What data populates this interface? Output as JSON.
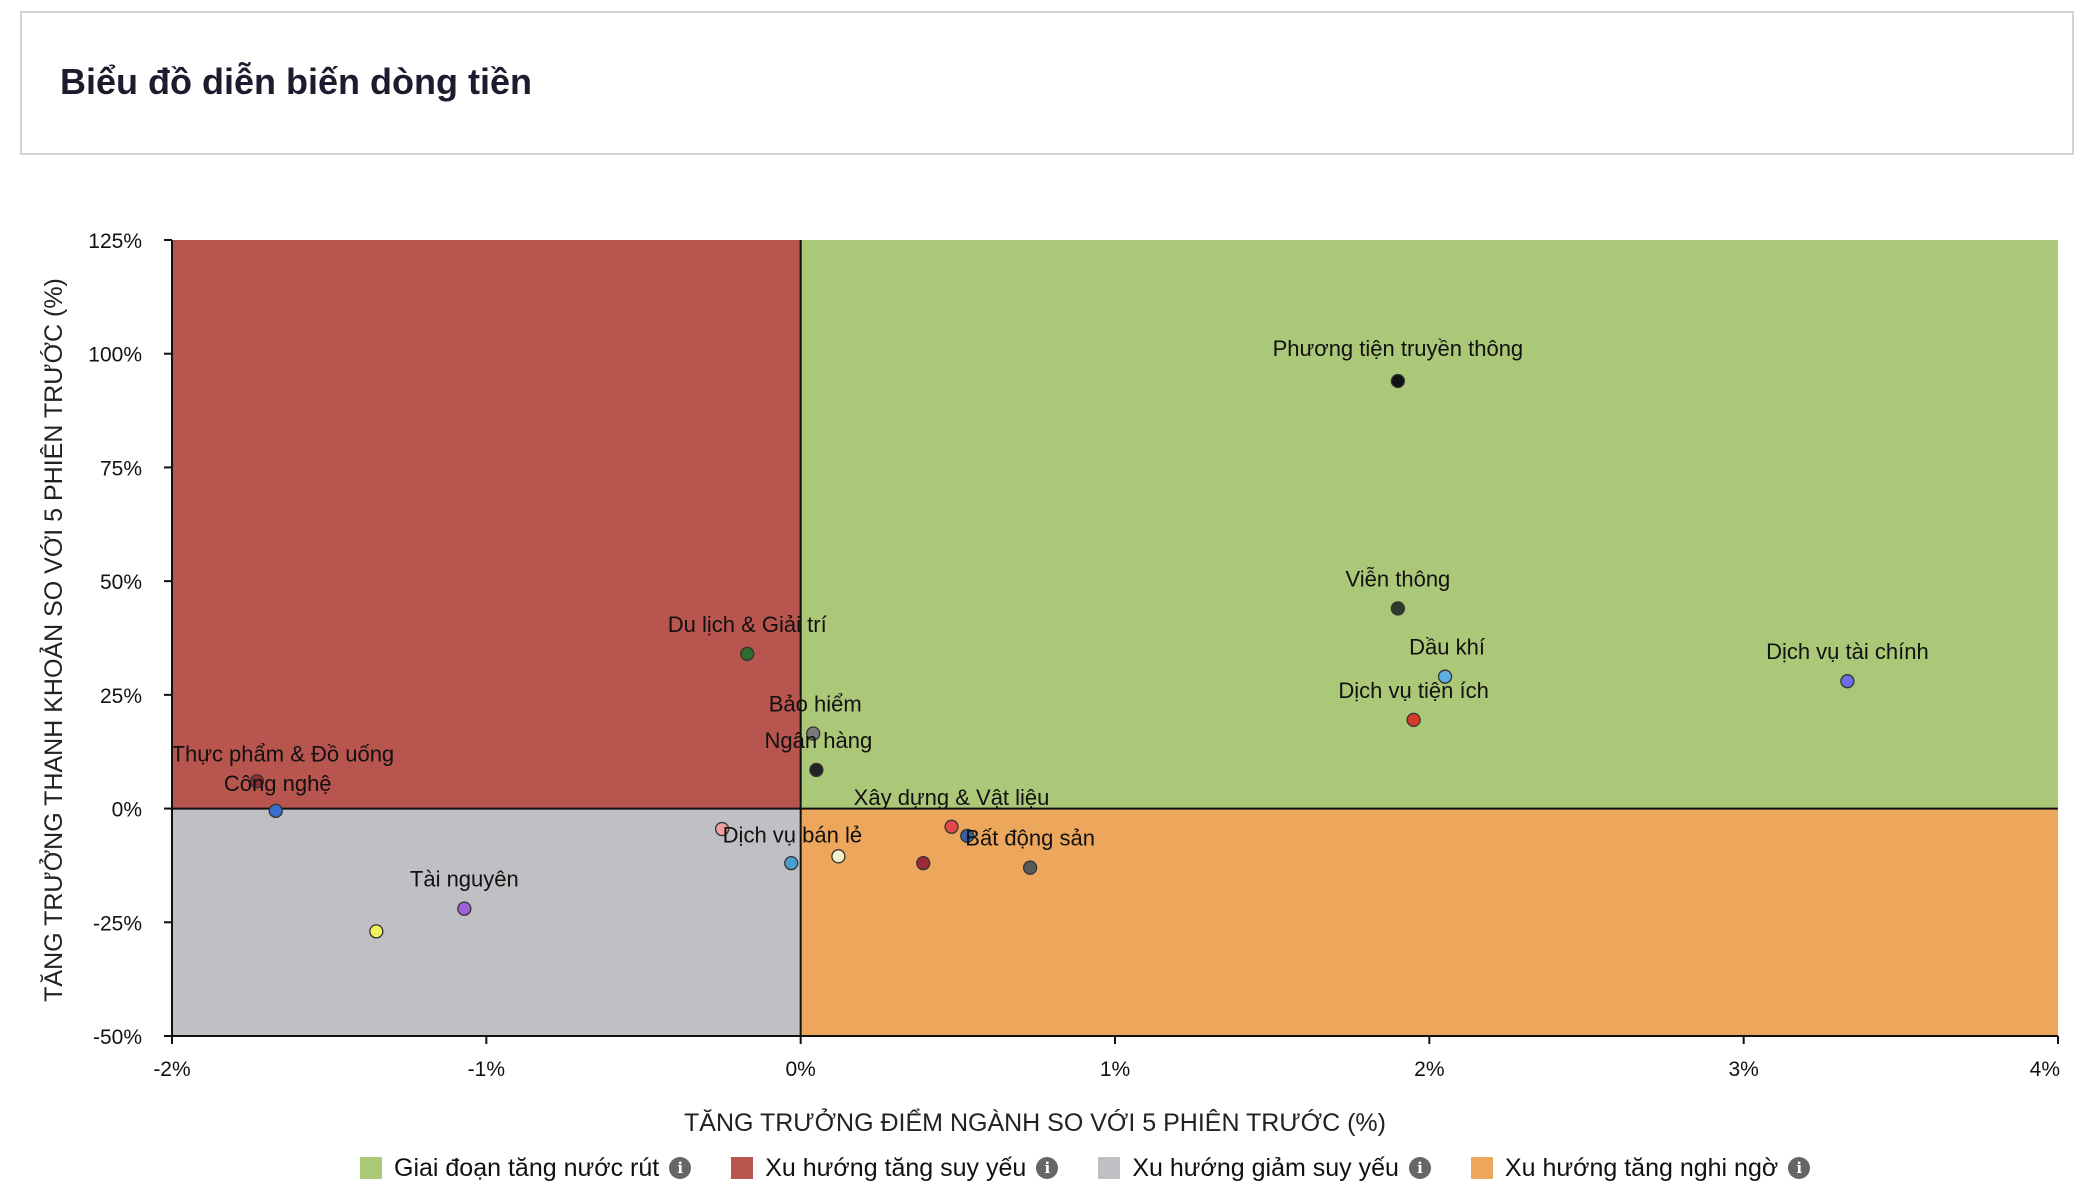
{
  "header": {
    "title": "Biểu đồ diễn biến dòng tiền"
  },
  "chart_data": {
    "type": "scatter",
    "title": "",
    "xlabel": "TĂNG TRƯỞNG ĐIỂM NGÀNH SO VỚI 5 PHIÊN TRƯỚC (%)",
    "ylabel": "TĂNG TRƯỞNG THANH KHOẢN SO VỚI 5 PHIÊN TRƯỚC (%)",
    "xlim": [
      -2,
      4
    ],
    "ylim": [
      -50,
      125
    ],
    "x_ticks": [
      -2,
      -1,
      0,
      1,
      2,
      3,
      4
    ],
    "x_tick_labels": [
      "-2%",
      "-1%",
      "0%",
      "1%",
      "2%",
      "3%",
      "4%"
    ],
    "y_ticks": [
      125,
      100,
      75,
      50,
      25,
      0,
      -25,
      -50
    ],
    "y_tick_labels": [
      "125%",
      "100%",
      "75%",
      "50%",
      "25%",
      "0%",
      "-25%",
      "-50%"
    ],
    "grid": false,
    "legend_position": "bottom",
    "quadrants": [
      {
        "name": "Giai đoạn tăng nước rút",
        "x": [
          0,
          4
        ],
        "y": [
          0,
          125
        ],
        "color": "#abc778"
      },
      {
        "name": "Xu hướng tăng suy yếu",
        "x": [
          -2,
          0
        ],
        "y": [
          0,
          125
        ],
        "color": "#b8554f"
      },
      {
        "name": "Xu hướng giảm suy yếu",
        "x": [
          -2,
          0
        ],
        "y": [
          -50,
          0
        ],
        "color": "#c0c0c4"
      },
      {
        "name": "Xu hướng tăng nghi ngờ",
        "x": [
          0,
          4
        ],
        "y": [
          -50,
          0
        ],
        "color": "#eda75c"
      }
    ],
    "points": [
      {
        "label": "Phương tiện truyền thông",
        "x": 1.9,
        "y": 94,
        "color": "#111111"
      },
      {
        "label": "Viễn thông",
        "x": 1.9,
        "y": 44,
        "color": "#2f3a2a"
      },
      {
        "label": "Dầu khí",
        "x": 2.05,
        "y": 29,
        "color": "#5aaee0"
      },
      {
        "label": "Dịch vụ tài chính",
        "x": 3.33,
        "y": 28,
        "color": "#6b6fe0"
      },
      {
        "label": "Dịch vụ tiện ích",
        "x": 1.95,
        "y": 19.5,
        "color": "#d63a2c"
      },
      {
        "label": "Du lịch & Giải trí",
        "x": -0.17,
        "y": 34,
        "color": "#2e6b2e"
      },
      {
        "label": "Bảo hiểm",
        "x": 0.04,
        "y": 16.5,
        "color": "#7a7a7a"
      },
      {
        "label": "Ngân hàng",
        "x": 0.05,
        "y": 8.5,
        "color": "#222222"
      },
      {
        "label": "Thực phẩm & Đồ uống",
        "x": -1.73,
        "y": 6,
        "color": "#8a3030"
      },
      {
        "label": "Công nghệ",
        "x": -1.67,
        "y": -0.5,
        "color": "#3a6fd0"
      },
      {
        "label": "Xây dựng & Vật liệu",
        "x": 0.48,
        "y": -4,
        "color": "#e04a4a"
      },
      {
        "label": "Bất động sản",
        "x": 0.73,
        "y": -13,
        "color": "#5a5a5a"
      },
      {
        "label": "Dịch vụ bán lẻ",
        "x": 0.12,
        "y": -10.5,
        "color": "#f2f2c8"
      },
      {
        "label": "Tài nguyên",
        "x": -1.07,
        "y": -22,
        "color": "#a060d8"
      },
      {
        "label": "",
        "x": -1.35,
        "y": -27,
        "color": "#f2f25a"
      },
      {
        "label": "",
        "x": -0.25,
        "y": -4.5,
        "color": "#f0a0a0"
      },
      {
        "label": "",
        "x": -0.03,
        "y": -12,
        "color": "#4a9ed0"
      },
      {
        "label": "",
        "x": 0.39,
        "y": -12,
        "color": "#9a2a3a"
      },
      {
        "label": "",
        "x": 0.53,
        "y": -6,
        "color": "#3a5fa0"
      }
    ]
  },
  "legend": {
    "items": [
      {
        "label": "Giai đoạn tăng nước rút",
        "color": "#abc778"
      },
      {
        "label": "Xu hướng tăng suy yếu",
        "color": "#b8554f"
      },
      {
        "label": "Xu hướng giảm suy yếu",
        "color": "#c0c0c4"
      },
      {
        "label": "Xu hướng tăng nghi ngờ",
        "color": "#eda75c"
      }
    ],
    "info_glyph": "i"
  }
}
